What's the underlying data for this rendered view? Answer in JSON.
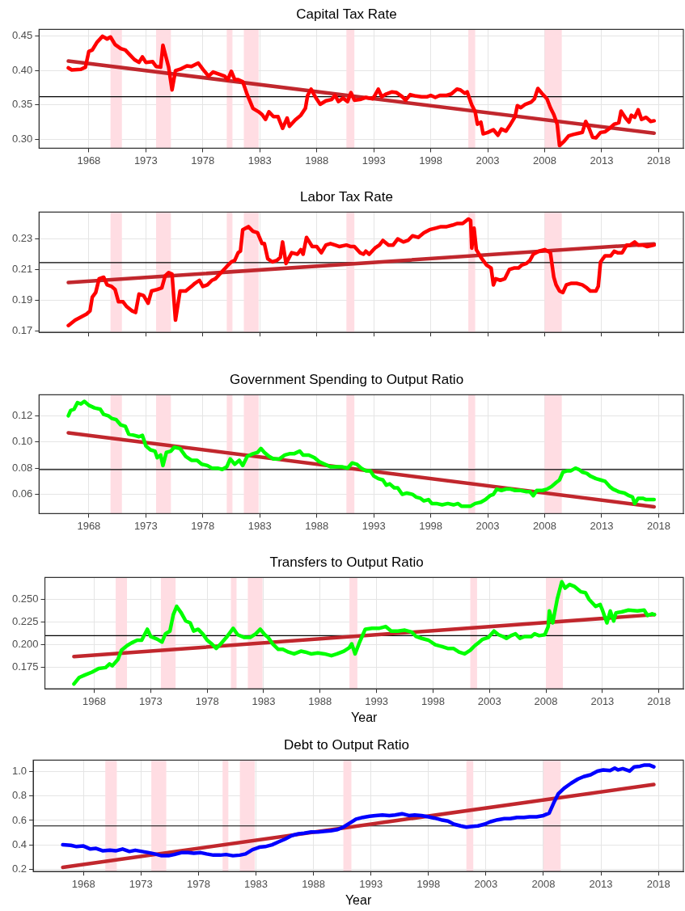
{
  "chart_data": [
    {
      "type": "line",
      "title": "Capital Tax Rate",
      "xlim": [
        1963.63,
        2020.17
      ],
      "xticks": [
        1968,
        1973,
        1978,
        1983,
        1988,
        1993,
        1998,
        2003,
        2008,
        2013,
        2018
      ],
      "ylim": [
        0.287,
        0.46
      ],
      "yticks": [
        {
          "value": 0.3,
          "label": "0.30"
        },
        0.35,
        {
          "value": 0.4,
          "label": "0.40"
        },
        0.45
      ],
      "grid": true,
      "legend": false,
      "bands": [
        {
          "axis": "x",
          "from": 1969.9,
          "to": 1970.9,
          "color": "#ffdde3"
        },
        {
          "axis": "x",
          "from": 1973.9,
          "to": 1975.2,
          "color": "#ffdde3"
        },
        {
          "axis": "x",
          "from": 1980.1,
          "to": 1980.6,
          "color": "#ffdde3"
        },
        {
          "axis": "x",
          "from": 1981.6,
          "to": 1982.9,
          "color": "#ffdde3"
        },
        {
          "axis": "x",
          "from": 1990.6,
          "to": 1991.3,
          "color": "#ffdde3"
        },
        {
          "axis": "x",
          "from": 2001.3,
          "to": 2001.9,
          "color": "#ffdde3"
        },
        {
          "axis": "x",
          "from": 2008.0,
          "to": 2009.5,
          "color": "#ffdde3"
        }
      ],
      "ref_lines": [
        {
          "axis": "y",
          "value": 0.362,
          "color": "#000000"
        }
      ],
      "series": [
        {
          "type": "line",
          "color": "#ff0000",
          "x": [
            1966.2,
            1966.5,
            1967.3,
            1967.7,
            1968.0,
            1968.3,
            1968.7,
            1969.2,
            1969.6,
            1969.9,
            1970.3,
            1970.8,
            1971.2,
            1971.6,
            1972.0,
            1972.4,
            1972.7,
            1973.0,
            1973.6,
            1973.9,
            1974.3,
            1974.5,
            1975.0,
            1975.3,
            1975.6,
            1976.0,
            1976.6,
            1977.0,
            1977.6,
            1978.0,
            1978.5,
            1978.9,
            1979.4,
            1979.9,
            1980.2,
            1980.5,
            1980.8,
            1981.1,
            1981.5,
            1981.9,
            1982.4,
            1982.9,
            1983.2,
            1983.5,
            1983.8,
            1984.2,
            1984.6,
            1985.0,
            1985.4,
            1985.6,
            1986.1,
            1986.6,
            1987.0,
            1987.2,
            1987.5,
            1987.9,
            1988.3,
            1988.8,
            1989.3,
            1989.6,
            1989.9,
            1990.3,
            1990.7,
            1991.0,
            1991.3,
            1991.8,
            1992.3,
            1992.9,
            1993.1,
            1993.4,
            1993.7,
            1994.1,
            1994.6,
            1995.0,
            1995.5,
            1995.8,
            1996.2,
            1996.7,
            1997.2,
            1997.7,
            1998.0,
            1998.4,
            1998.8,
            1999.4,
            1999.8,
            2000.3,
            2000.6,
            2001.0,
            2001.2,
            2001.6,
            2001.9,
            2002.1,
            2002.4,
            2002.6,
            2003.0,
            2003.5,
            2003.9,
            2004.2,
            2004.6,
            2005.0,
            2005.4,
            2005.6,
            2005.9,
            2006.3,
            2006.8,
            2007.1,
            2007.4,
            2007.8,
            2008.2,
            2008.5,
            2008.8,
            2009.1,
            2009.3,
            2009.7,
            2010.1,
            2010.5,
            2011.0,
            2011.3,
            2011.6,
            2011.9,
            2012.2,
            2012.5,
            2012.9,
            2013.3,
            2013.7,
            2014.1,
            2014.5,
            2014.7,
            2015.1,
            2015.4,
            2015.6,
            2015.9,
            2016.2,
            2016.5,
            2016.9,
            2017.3,
            2017.6
          ],
          "values": [
            0.404,
            0.401,
            0.402,
            0.405,
            0.428,
            0.43,
            0.441,
            0.45,
            0.446,
            0.449,
            0.438,
            0.432,
            0.43,
            0.423,
            0.416,
            0.412,
            0.42,
            0.412,
            0.413,
            0.406,
            0.405,
            0.437,
            0.405,
            0.372,
            0.4,
            0.402,
            0.407,
            0.406,
            0.411,
            0.402,
            0.392,
            0.398,
            0.395,
            0.392,
            0.387,
            0.399,
            0.387,
            0.387,
            0.384,
            0.365,
            0.345,
            0.34,
            0.336,
            0.329,
            0.34,
            0.333,
            0.333,
            0.316,
            0.331,
            0.319,
            0.328,
            0.335,
            0.345,
            0.364,
            0.373,
            0.361,
            0.351,
            0.356,
            0.358,
            0.364,
            0.355,
            0.36,
            0.355,
            0.368,
            0.357,
            0.358,
            0.361,
            0.359,
            0.364,
            0.373,
            0.362,
            0.366,
            0.369,
            0.368,
            0.362,
            0.357,
            0.365,
            0.363,
            0.362,
            0.362,
            0.364,
            0.361,
            0.364,
            0.364,
            0.366,
            0.373,
            0.372,
            0.367,
            0.369,
            0.35,
            0.34,
            0.322,
            0.325,
            0.308,
            0.31,
            0.314,
            0.306,
            0.315,
            0.312,
            0.322,
            0.333,
            0.349,
            0.346,
            0.351,
            0.354,
            0.359,
            0.374,
            0.366,
            0.359,
            0.346,
            0.336,
            0.322,
            0.291,
            0.297,
            0.305,
            0.307,
            0.309,
            0.31,
            0.326,
            0.316,
            0.303,
            0.302,
            0.31,
            0.311,
            0.316,
            0.322,
            0.324,
            0.341,
            0.331,
            0.325,
            0.335,
            0.332,
            0.343,
            0.329,
            0.332,
            0.326,
            0.327
          ]
        },
        {
          "type": "line",
          "color": "#c1272d",
          "x": [
            1966.2,
            2017.6
          ],
          "values": [
            0.414,
            0.309
          ]
        }
      ]
    },
    {
      "type": "line",
      "title": "Labor Tax Rate",
      "xlim": [
        1963.63,
        2020.17
      ],
      "xticks": [
        1968,
        1973,
        1978,
        1983,
        1988,
        1993,
        1998,
        2003,
        2008,
        2013,
        2018
      ],
      "ylim": [
        0.169,
        0.2475
      ],
      "yticks": [
        0.17,
        0.19,
        0.21,
        0.23
      ],
      "grid": true,
      "legend": false,
      "tick_labels": "y",
      "bands": [
        {
          "axis": "x",
          "from": 1969.9,
          "to": 1970.9,
          "color": "#ffdde3"
        },
        {
          "axis": "x",
          "from": 1973.9,
          "to": 1975.2,
          "color": "#ffdde3"
        },
        {
          "axis": "x",
          "from": 1980.1,
          "to": 1980.6,
          "color": "#ffdde3"
        },
        {
          "axis": "x",
          "from": 1981.6,
          "to": 1982.9,
          "color": "#ffdde3"
        },
        {
          "axis": "x",
          "from": 1990.6,
          "to": 1991.3,
          "color": "#ffdde3"
        },
        {
          "axis": "x",
          "from": 2001.3,
          "to": 2001.9,
          "color": "#ffdde3"
        },
        {
          "axis": "x",
          "from": 2008.0,
          "to": 2009.5,
          "color": "#ffdde3"
        }
      ],
      "ref_lines": [
        {
          "axis": "y",
          "value": 0.2145,
          "color": "#000000"
        }
      ],
      "series": [
        {
          "type": "line",
          "color": "#ff0000",
          "x": [
            1966.2,
            1966.8,
            1967.3,
            1967.8,
            1968.1,
            1968.3,
            1968.6,
            1968.9,
            1969.3,
            1969.6,
            1970.0,
            1970.3,
            1970.6,
            1971.0,
            1971.3,
            1971.8,
            1972.1,
            1972.4,
            1972.8,
            1973.2,
            1973.5,
            1974.0,
            1974.4,
            1974.7,
            1975.0,
            1975.3,
            1975.6,
            1976.0,
            1976.5,
            1977.0,
            1977.3,
            1977.7,
            1978.0,
            1978.4,
            1978.8,
            1979.1,
            1979.6,
            1980.1,
            1980.5,
            1980.8,
            1981.1,
            1981.3,
            1981.5,
            1982.0,
            1982.4,
            1982.8,
            1983.2,
            1983.4,
            1983.7,
            1984.1,
            1984.5,
            1984.8,
            1985.0,
            1985.3,
            1985.8,
            1986.3,
            1986.6,
            1986.8,
            1987.1,
            1987.6,
            1988.0,
            1988.4,
            1988.8,
            1989.2,
            1989.6,
            1990.0,
            1990.6,
            1991.0,
            1991.3,
            1991.8,
            1992.1,
            1992.3,
            1992.6,
            1993.1,
            1993.5,
            1993.8,
            1994.3,
            1994.7,
            1995.1,
            1995.6,
            1996.0,
            1996.4,
            1996.9,
            1997.4,
            1997.9,
            1998.4,
            1998.9,
            1999.4,
            1999.9,
            2000.3,
            2000.8,
            2001.3,
            2001.5,
            2001.6,
            2001.8,
            2002.0,
            2002.4,
            2002.9,
            2003.3,
            2003.5,
            2003.7,
            2004.1,
            2004.5,
            2004.9,
            2005.3,
            2005.7,
            2006.0,
            2006.4,
            2006.7,
            2007.0,
            2007.5,
            2008.0,
            2008.5,
            2008.8,
            2009.0,
            2009.3,
            2009.6,
            2009.9,
            2010.3,
            2010.8,
            2011.3,
            2011.7,
            2012.0,
            2012.5,
            2012.7,
            2012.9,
            2013.3,
            2013.8,
            2014.1,
            2014.4,
            2014.8,
            2015.2,
            2015.5,
            2015.9,
            2016.2,
            2016.6,
            2017.0,
            2017.6
          ],
          "values": [
            0.1735,
            0.177,
            0.179,
            0.181,
            0.183,
            0.192,
            0.195,
            0.204,
            0.205,
            0.2,
            0.199,
            0.197,
            0.189,
            0.189,
            0.186,
            0.183,
            0.182,
            0.194,
            0.193,
            0.188,
            0.196,
            0.197,
            0.198,
            0.206,
            0.208,
            0.207,
            0.177,
            0.196,
            0.196,
            0.199,
            0.201,
            0.203,
            0.199,
            0.2,
            0.203,
            0.204,
            0.208,
            0.212,
            0.215,
            0.216,
            0.221,
            0.222,
            0.236,
            0.238,
            0.235,
            0.234,
            0.227,
            0.227,
            0.217,
            0.215,
            0.216,
            0.218,
            0.228,
            0.214,
            0.221,
            0.22,
            0.223,
            0.22,
            0.231,
            0.225,
            0.225,
            0.221,
            0.226,
            0.227,
            0.226,
            0.225,
            0.226,
            0.225,
            0.225,
            0.221,
            0.22,
            0.222,
            0.22,
            0.224,
            0.226,
            0.229,
            0.226,
            0.226,
            0.23,
            0.228,
            0.229,
            0.232,
            0.231,
            0.234,
            0.236,
            0.237,
            0.238,
            0.238,
            0.239,
            0.24,
            0.24,
            0.243,
            0.242,
            0.224,
            0.237,
            0.223,
            0.218,
            0.213,
            0.211,
            0.2,
            0.204,
            0.203,
            0.204,
            0.21,
            0.211,
            0.211,
            0.213,
            0.214,
            0.216,
            0.22,
            0.222,
            0.223,
            0.221,
            0.205,
            0.2,
            0.196,
            0.195,
            0.2,
            0.201,
            0.201,
            0.2,
            0.198,
            0.196,
            0.196,
            0.199,
            0.215,
            0.219,
            0.219,
            0.222,
            0.221,
            0.221,
            0.226,
            0.226,
            0.228,
            0.226,
            0.226,
            0.225,
            0.226
          ]
        },
        {
          "type": "line",
          "color": "#c1272d",
          "x": [
            1966.2,
            2017.6
          ],
          "values": [
            0.2015,
            0.2268
          ]
        }
      ]
    },
    {
      "type": "line",
      "title": "Government Spending to Output Ratio",
      "xlim": [
        1963.63,
        2020.17
      ],
      "xticks": [
        1968,
        1973,
        1978,
        1983,
        1988,
        1993,
        1998,
        2003,
        2008,
        2013,
        2018
      ],
      "ylim": [
        0.0453,
        0.136
      ],
      "yticks": [
        0.06,
        0.08,
        {
          "value": 0.1,
          "label": "0.10"
        },
        0.12
      ],
      "grid": true,
      "legend": false,
      "bands": [
        {
          "axis": "x",
          "from": 1969.9,
          "to": 1970.9,
          "color": "#ffdde3"
        },
        {
          "axis": "x",
          "from": 1973.9,
          "to": 1975.2,
          "color": "#ffdde3"
        },
        {
          "axis": "x",
          "from": 1980.1,
          "to": 1980.6,
          "color": "#ffdde3"
        },
        {
          "axis": "x",
          "from": 1981.6,
          "to": 1982.9,
          "color": "#ffdde3"
        },
        {
          "axis": "x",
          "from": 1990.6,
          "to": 1991.3,
          "color": "#ffdde3"
        },
        {
          "axis": "x",
          "from": 2001.3,
          "to": 2001.9,
          "color": "#ffdde3"
        },
        {
          "axis": "x",
          "from": 2008.0,
          "to": 2009.5,
          "color": "#ffdde3"
        }
      ],
      "ref_lines": [
        {
          "axis": "y",
          "value": 0.079,
          "color": "#000000"
        }
      ],
      "series": [
        {
          "type": "line",
          "color": "#00ff00",
          "x": [
            1966.2,
            1966.4,
            1966.7,
            1967.0,
            1967.3,
            1967.6,
            1968.0,
            1968.5,
            1969.0,
            1969.3,
            1969.7,
            1970.0,
            1970.4,
            1970.8,
            1971.2,
            1971.5,
            1972.0,
            1972.4,
            1972.7,
            1973.0,
            1973.4,
            1973.8,
            1974.0,
            1974.3,
            1974.5,
            1974.8,
            1975.2,
            1975.5,
            1976.0,
            1976.5,
            1977.0,
            1977.5,
            1977.9,
            1978.4,
            1978.8,
            1979.3,
            1979.7,
            1980.1,
            1980.4,
            1980.8,
            1981.2,
            1981.5,
            1981.9,
            1982.4,
            1982.8,
            1983.1,
            1983.4,
            1983.8,
            1984.2,
            1984.7,
            1985.2,
            1985.6,
            1986.0,
            1986.5,
            1986.8,
            1987.3,
            1987.8,
            1988.2,
            1988.7,
            1989.2,
            1989.7,
            1990.2,
            1990.7,
            1991.1,
            1991.5,
            1991.9,
            1992.3,
            1992.7,
            1993.0,
            1993.4,
            1993.8,
            1994.1,
            1994.4,
            1994.8,
            1995.1,
            1995.5,
            1995.9,
            1996.4,
            1996.7,
            1997.1,
            1997.4,
            1997.8,
            1998.1,
            1998.5,
            1999.0,
            1999.5,
            2000.0,
            2000.4,
            2000.7,
            2001.1,
            2001.5,
            2001.9,
            2002.4,
            2002.8,
            2003.2,
            2003.5,
            2003.8,
            2004.2,
            2004.6,
            2005.0,
            2005.4,
            2005.9,
            2006.4,
            2006.7,
            2007.0,
            2007.3,
            2007.8,
            2008.2,
            2008.6,
            2009.0,
            2009.3,
            2009.6,
            2010.0,
            2010.3,
            2010.7,
            2011.0,
            2011.3,
            2011.7,
            2012.0,
            2012.5,
            2012.9,
            2013.3,
            2013.7,
            2014.0,
            2014.5,
            2015.0,
            2015.4,
            2015.7,
            2015.9,
            2016.2,
            2016.6,
            2016.9,
            2017.3,
            2017.6
          ],
          "values": [
            0.12,
            0.124,
            0.125,
            0.13,
            0.129,
            0.131,
            0.128,
            0.126,
            0.125,
            0.121,
            0.12,
            0.118,
            0.117,
            0.113,
            0.112,
            0.106,
            0.105,
            0.104,
            0.105,
            0.097,
            0.094,
            0.093,
            0.088,
            0.09,
            0.082,
            0.092,
            0.093,
            0.096,
            0.095,
            0.089,
            0.086,
            0.086,
            0.083,
            0.082,
            0.08,
            0.08,
            0.079,
            0.081,
            0.087,
            0.083,
            0.086,
            0.082,
            0.089,
            0.091,
            0.092,
            0.095,
            0.092,
            0.089,
            0.087,
            0.087,
            0.09,
            0.091,
            0.091,
            0.093,
            0.09,
            0.09,
            0.088,
            0.085,
            0.083,
            0.081,
            0.081,
            0.081,
            0.08,
            0.084,
            0.083,
            0.08,
            0.078,
            0.078,
            0.074,
            0.072,
            0.071,
            0.067,
            0.068,
            0.065,
            0.065,
            0.06,
            0.061,
            0.06,
            0.058,
            0.057,
            0.055,
            0.056,
            0.053,
            0.053,
            0.052,
            0.053,
            0.052,
            0.053,
            0.051,
            0.051,
            0.051,
            0.053,
            0.054,
            0.056,
            0.059,
            0.06,
            0.064,
            0.063,
            0.064,
            0.064,
            0.063,
            0.063,
            0.062,
            0.062,
            0.059,
            0.063,
            0.063,
            0.064,
            0.066,
            0.069,
            0.071,
            0.077,
            0.078,
            0.078,
            0.08,
            0.079,
            0.077,
            0.076,
            0.074,
            0.072,
            0.071,
            0.07,
            0.066,
            0.064,
            0.062,
            0.061,
            0.059,
            0.058,
            0.053,
            0.057,
            0.057,
            0.056,
            0.056,
            0.056
          ]
        },
        {
          "type": "line",
          "color": "#c1272d",
          "x": [
            1966.2,
            2017.6
          ],
          "values": [
            0.107,
            0.0505
          ]
        }
      ]
    },
    {
      "type": "line",
      "title": "Transfers to Output Ratio",
      "xlabel": "Year",
      "xlim": [
        1963.63,
        2020.17
      ],
      "xticks": [
        1968,
        1973,
        1978,
        1983,
        1988,
        1993,
        1998,
        2003,
        2008,
        2013,
        2018
      ],
      "ylim": [
        0.1517,
        0.2737
      ],
      "yticks": [
        0.175,
        {
          "value": 0.2,
          "label": "0.200"
        },
        0.225,
        {
          "value": 0.25,
          "label": "0.250"
        }
      ],
      "grid": true,
      "legend": false,
      "bands": [
        {
          "axis": "x",
          "from": 1969.9,
          "to": 1970.9,
          "color": "#ffdde3"
        },
        {
          "axis": "x",
          "from": 1973.9,
          "to": 1975.2,
          "color": "#ffdde3"
        },
        {
          "axis": "x",
          "from": 1980.1,
          "to": 1980.6,
          "color": "#ffdde3"
        },
        {
          "axis": "x",
          "from": 1981.6,
          "to": 1982.9,
          "color": "#ffdde3"
        },
        {
          "axis": "x",
          "from": 1990.6,
          "to": 1991.3,
          "color": "#ffdde3"
        },
        {
          "axis": "x",
          "from": 2001.3,
          "to": 2001.9,
          "color": "#ffdde3"
        },
        {
          "axis": "x",
          "from": 2008.0,
          "to": 2009.5,
          "color": "#ffdde3"
        }
      ],
      "ref_lines": [
        {
          "axis": "y",
          "value": 0.21,
          "color": "#000000"
        }
      ],
      "series": [
        {
          "type": "line",
          "color": "#00ff00",
          "x": [
            1966.2,
            1966.65,
            1967.2,
            1967.8,
            1968.4,
            1969.0,
            1969.35,
            1969.6,
            1970.1,
            1970.4,
            1970.9,
            1971.3,
            1971.8,
            1972.2,
            1972.7,
            1973.0,
            1973.6,
            1974.0,
            1974.3,
            1974.7,
            1975.0,
            1975.3,
            1975.7,
            1976.1,
            1976.5,
            1976.8,
            1977.2,
            1977.6,
            1978.0,
            1978.4,
            1978.8,
            1979.2,
            1979.7,
            1980.3,
            1980.7,
            1981.3,
            1981.8,
            1982.3,
            1982.7,
            1983.1,
            1983.4,
            1983.8,
            1984.3,
            1984.7,
            1985.2,
            1985.7,
            1986.3,
            1986.7,
            1987.2,
            1987.8,
            1988.4,
            1989.0,
            1989.5,
            1990.1,
            1990.6,
            1990.8,
            1991.1,
            1991.5,
            1992.0,
            1992.6,
            1993.2,
            1993.8,
            1994.3,
            1994.9,
            1995.5,
            1996.1,
            1996.5,
            1997.0,
            1997.6,
            1998.2,
            1998.8,
            1999.3,
            1999.8,
            2000.3,
            2000.8,
            2001.3,
            2001.7,
            2002.0,
            2002.4,
            2002.9,
            2003.4,
            2003.8,
            2004.2,
            2004.5,
            2004.9,
            2005.3,
            2005.7,
            2006.1,
            2006.7,
            2007.0,
            2007.4,
            2007.9,
            2008.2,
            2008.3,
            2008.6,
            2009.0,
            2009.4,
            2009.7,
            2010.1,
            2010.5,
            2011.1,
            2011.5,
            2011.8,
            2012.4,
            2012.8,
            2013.0,
            2013.4,
            2013.7,
            2014.0,
            2014.2,
            2014.7,
            2015.3,
            2016.1,
            2016.7,
            2017.0,
            2017.4,
            2017.6
          ],
          "values": [
            0.157,
            0.164,
            0.167,
            0.17,
            0.174,
            0.175,
            0.179,
            0.177,
            0.184,
            0.194,
            0.199,
            0.202,
            0.205,
            0.205,
            0.217,
            0.209,
            0.206,
            0.203,
            0.212,
            0.215,
            0.233,
            0.242,
            0.235,
            0.226,
            0.224,
            0.215,
            0.217,
            0.212,
            0.205,
            0.201,
            0.196,
            0.201,
            0.208,
            0.218,
            0.211,
            0.208,
            0.208,
            0.212,
            0.217,
            0.211,
            0.208,
            0.201,
            0.195,
            0.195,
            0.192,
            0.19,
            0.193,
            0.192,
            0.19,
            0.191,
            0.19,
            0.188,
            0.19,
            0.193,
            0.197,
            0.201,
            0.19,
            0.203,
            0.217,
            0.218,
            0.218,
            0.22,
            0.215,
            0.215,
            0.216,
            0.214,
            0.209,
            0.207,
            0.205,
            0.2,
            0.198,
            0.196,
            0.196,
            0.192,
            0.19,
            0.194,
            0.199,
            0.202,
            0.206,
            0.208,
            0.215,
            0.211,
            0.209,
            0.207,
            0.21,
            0.212,
            0.207,
            0.209,
            0.209,
            0.212,
            0.21,
            0.211,
            0.22,
            0.237,
            0.224,
            0.25,
            0.269,
            0.262,
            0.266,
            0.264,
            0.258,
            0.257,
            0.25,
            0.242,
            0.244,
            0.238,
            0.224,
            0.237,
            0.226,
            0.235,
            0.236,
            0.238,
            0.237,
            0.238,
            0.232,
            0.234,
            0.233
          ]
        },
        {
          "type": "line",
          "color": "#c1272d",
          "x": [
            1966.2,
            2017.6
          ],
          "values": [
            0.187,
            0.233
          ]
        }
      ]
    },
    {
      "type": "line",
      "title": "Debt to Output Ratio",
      "xlabel": "Year",
      "xlim": [
        1963.63,
        2020.17
      ],
      "xticks": [
        1968,
        1973,
        1978,
        1983,
        1988,
        1993,
        1998,
        2003,
        2008,
        2013,
        2018
      ],
      "ylim": [
        0.18,
        1.095
      ],
      "yticks": [
        0.2,
        0.4,
        0.6,
        0.8,
        {
          "value": 1,
          "label": "1.0"
        }
      ],
      "grid": true,
      "legend": false,
      "bands": [
        {
          "axis": "x",
          "from": 1969.9,
          "to": 1970.9,
          "color": "#ffdde3"
        },
        {
          "axis": "x",
          "from": 1973.9,
          "to": 1975.2,
          "color": "#ffdde3"
        },
        {
          "axis": "x",
          "from": 1980.1,
          "to": 1980.6,
          "color": "#ffdde3"
        },
        {
          "axis": "x",
          "from": 1981.6,
          "to": 1982.9,
          "color": "#ffdde3"
        },
        {
          "axis": "x",
          "from": 1990.6,
          "to": 1991.3,
          "color": "#ffdde3"
        },
        {
          "axis": "x",
          "from": 2001.3,
          "to": 2001.9,
          "color": "#ffdde3"
        },
        {
          "axis": "x",
          "from": 2008.0,
          "to": 2009.5,
          "color": "#ffdde3"
        }
      ],
      "ref_lines": [
        {
          "axis": "y",
          "value": 0.555,
          "color": "#000000"
        }
      ],
      "series": [
        {
          "type": "line",
          "color": "#0000ff",
          "x": [
            1966.2,
            1966.9,
            1967.4,
            1968.0,
            1968.6,
            1969.1,
            1969.7,
            1970.3,
            1970.8,
            1971.4,
            1972.0,
            1972.5,
            1973.1,
            1973.7,
            1974.2,
            1974.8,
            1975.4,
            1975.9,
            1976.5,
            1977.1,
            1977.6,
            1978.2,
            1978.7,
            1979.3,
            1979.9,
            1980.4,
            1981.0,
            1981.6,
            1982.1,
            1982.7,
            1983.3,
            1983.8,
            1984.4,
            1985.0,
            1985.5,
            1986.1,
            1986.7,
            1987.2,
            1987.8,
            1988.4,
            1988.9,
            1989.5,
            1990.1,
            1990.6,
            1991.2,
            1991.7,
            1992.3,
            1992.9,
            1993.4,
            1994.0,
            1994.6,
            1995.1,
            1995.7,
            1996.3,
            1996.8,
            1997.4,
            1998.0,
            1998.5,
            1999.1,
            1999.7,
            2000.2,
            2000.8,
            2001.3,
            2001.7,
            2002.3,
            2002.9,
            2003.4,
            2004.0,
            2004.6,
            2005.1,
            2005.7,
            2006.3,
            2006.8,
            2007.4,
            2008.0,
            2008.5,
            2008.9,
            2009.3,
            2009.8,
            2010.4,
            2011.0,
            2011.5,
            2012.1,
            2012.7,
            2013.2,
            2013.8,
            2014.2,
            2014.5,
            2014.9,
            2015.5,
            2015.9,
            2016.4,
            2016.8,
            2017.2,
            2017.6
          ],
          "values": [
            0.4,
            0.395,
            0.385,
            0.39,
            0.365,
            0.37,
            0.35,
            0.355,
            0.35,
            0.365,
            0.345,
            0.355,
            0.345,
            0.335,
            0.325,
            0.31,
            0.31,
            0.32,
            0.335,
            0.335,
            0.33,
            0.335,
            0.325,
            0.315,
            0.315,
            0.32,
            0.31,
            0.315,
            0.325,
            0.36,
            0.38,
            0.385,
            0.4,
            0.425,
            0.445,
            0.475,
            0.49,
            0.495,
            0.505,
            0.505,
            0.51,
            0.515,
            0.525,
            0.545,
            0.58,
            0.61,
            0.625,
            0.635,
            0.64,
            0.645,
            0.64,
            0.645,
            0.655,
            0.64,
            0.645,
            0.64,
            0.63,
            0.62,
            0.605,
            0.595,
            0.57,
            0.555,
            0.545,
            0.55,
            0.555,
            0.57,
            0.59,
            0.605,
            0.615,
            0.615,
            0.625,
            0.625,
            0.63,
            0.63,
            0.64,
            0.66,
            0.745,
            0.82,
            0.865,
            0.905,
            0.94,
            0.96,
            0.975,
            1.005,
            1.015,
            1.01,
            1.03,
            1.015,
            1.025,
            1.005,
            1.04,
            1.045,
            1.055,
            1.055,
            1.04
          ]
        },
        {
          "type": "line",
          "color": "#c1272d",
          "x": [
            1966.2,
            2017.6
          ],
          "values": [
            0.215,
            0.895
          ]
        }
      ]
    }
  ]
}
